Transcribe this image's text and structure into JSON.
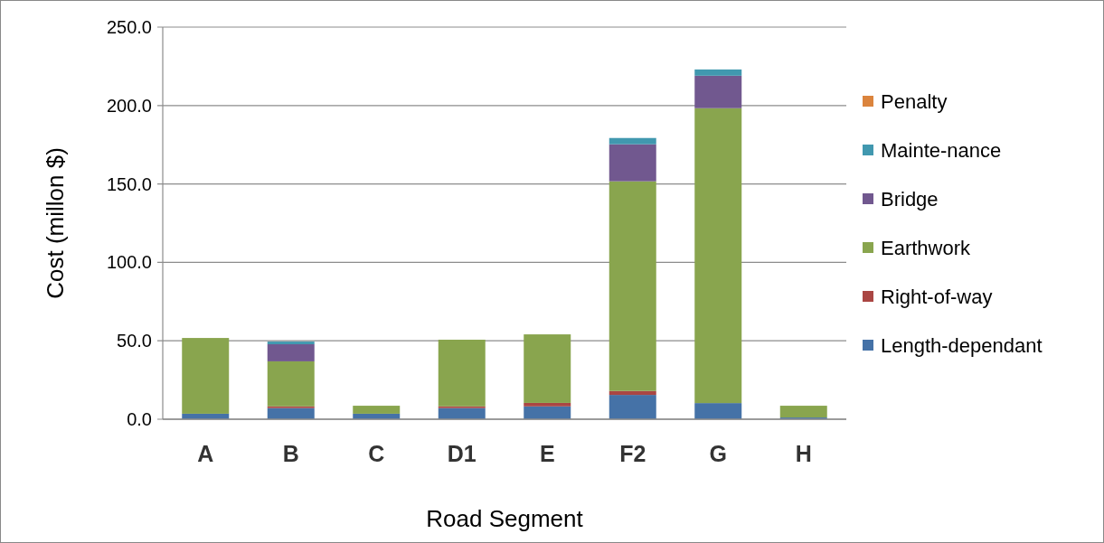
{
  "chart_data": {
    "type": "bar",
    "stacked": true,
    "xlabel": "Road Segment",
    "ylabel": "Cost (millon $)",
    "categories": [
      "A",
      "B",
      "C",
      "D1",
      "E",
      "F2",
      "G",
      "H"
    ],
    "series": [
      {
        "name": "Length-dependant",
        "color": "#4572a7",
        "values": [
          3.5,
          7.1,
          3.5,
          7.1,
          8.2,
          15.5,
          10.3,
          1.1
        ]
      },
      {
        "name": "Right-of-way",
        "color": "#aa4643",
        "values": [
          0,
          1.1,
          0,
          1.1,
          2.2,
          2.5,
          0,
          0
        ]
      },
      {
        "name": "Earthwork",
        "color": "#89a54e",
        "values": [
          48.3,
          28.7,
          5.1,
          42.5,
          43.7,
          133.7,
          188.0,
          7.5
        ]
      },
      {
        "name": "Bridge",
        "color": "#71588f",
        "values": [
          0,
          10.9,
          0,
          0,
          0,
          23.6,
          20.7,
          0
        ]
      },
      {
        "name": "Mainte-nance",
        "color": "#4198af",
        "values": [
          0,
          1.7,
          0,
          0,
          0,
          4.0,
          4.0,
          0
        ]
      },
      {
        "name": "Penalty",
        "color": "#db843d",
        "values": [
          0,
          0,
          0,
          0,
          0,
          0,
          0,
          0
        ]
      }
    ],
    "ylim": [
      0,
      250
    ],
    "yticks": [
      {
        "value": 0,
        "label": "0.0"
      },
      {
        "value": 50,
        "label": "50.0"
      },
      {
        "value": 100,
        "label": "100.0"
      },
      {
        "value": 150,
        "label": "150.0"
      },
      {
        "value": 200,
        "label": "200.0"
      },
      {
        "value": 250,
        "label": "250.0"
      }
    ],
    "grid": "y",
    "legend": "right"
  }
}
